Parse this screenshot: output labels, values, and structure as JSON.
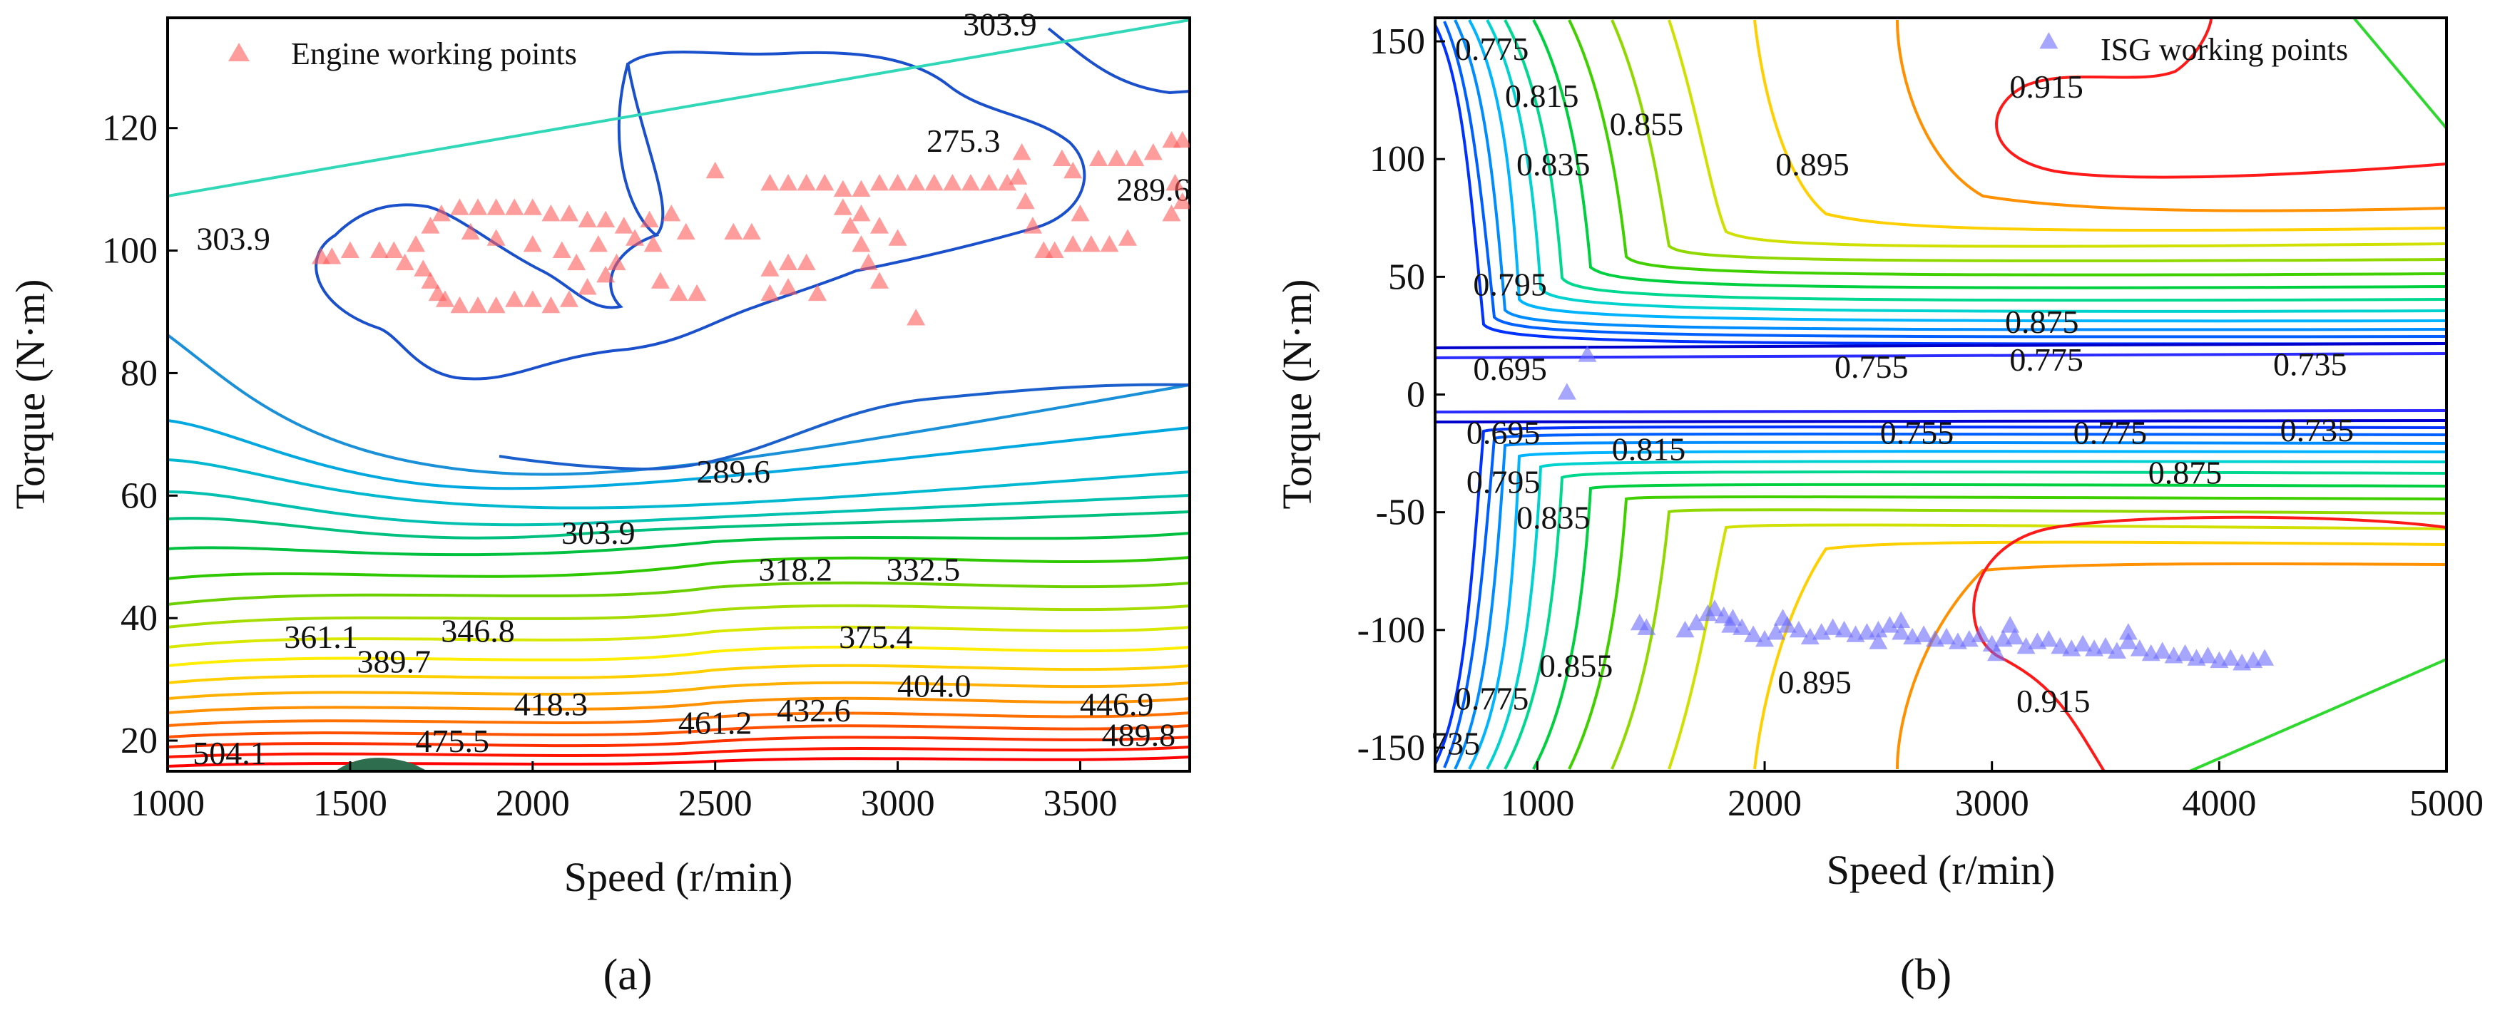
{
  "chart_data": [
    {
      "id": "a",
      "type": "scatter",
      "panel_label": "(a)",
      "xlabel": "Speed (r/min)",
      "ylabel": "Torque (N·m)",
      "xlim": [
        1000,
        3800
      ],
      "ylim": [
        15,
        138
      ],
      "xticks": [
        1000,
        1500,
        2000,
        2500,
        3000,
        3500
      ],
      "yticks": [
        20,
        40,
        60,
        80,
        100,
        120
      ],
      "legend": {
        "label": "Engine working points",
        "position": "top-left",
        "marker": "triangle",
        "color": "#ff5a5a"
      },
      "contour_labels": [
        {
          "text": "303.9",
          "x": 3280,
          "y": 137
        },
        {
          "text": "275.3",
          "x": 3180,
          "y": 118
        },
        {
          "text": "289.6",
          "x": 3700,
          "y": 110
        },
        {
          "text": "303.9",
          "x": 1180,
          "y": 102
        },
        {
          "text": "289.6",
          "x": 2550,
          "y": 64
        },
        {
          "text": "303.9",
          "x": 2180,
          "y": 54
        },
        {
          "text": "318.2",
          "x": 2720,
          "y": 48
        },
        {
          "text": "332.5",
          "x": 3070,
          "y": 48
        },
        {
          "text": "361.1",
          "x": 1420,
          "y": 37
        },
        {
          "text": "346.8",
          "x": 1850,
          "y": 38
        },
        {
          "text": "375.4",
          "x": 2940,
          "y": 37
        },
        {
          "text": "389.7",
          "x": 1620,
          "y": 33
        },
        {
          "text": "404.0",
          "x": 3100,
          "y": 29
        },
        {
          "text": "418.3",
          "x": 2050,
          "y": 26
        },
        {
          "text": "446.9",
          "x": 3600,
          "y": 26
        },
        {
          "text": "432.6",
          "x": 2770,
          "y": 25
        },
        {
          "text": "461.2",
          "x": 2500,
          "y": 23
        },
        {
          "text": "475.5",
          "x": 1780,
          "y": 20
        },
        {
          "text": "489.8",
          "x": 3660,
          "y": 21
        },
        {
          "text": "504.1",
          "x": 1170,
          "y": 18
        }
      ],
      "points": [
        {
          "x": 1750,
          "y": 106
        },
        {
          "x": 1800,
          "y": 107
        },
        {
          "x": 1850,
          "y": 107
        },
        {
          "x": 1900,
          "y": 107
        },
        {
          "x": 1950,
          "y": 107
        },
        {
          "x": 2000,
          "y": 107
        },
        {
          "x": 2050,
          "y": 106
        },
        {
          "x": 2100,
          "y": 106
        },
        {
          "x": 2150,
          "y": 105
        },
        {
          "x": 2200,
          "y": 105
        },
        {
          "x": 2250,
          "y": 104
        },
        {
          "x": 2320,
          "y": 105
        },
        {
          "x": 1720,
          "y": 104
        },
        {
          "x": 1680,
          "y": 101
        },
        {
          "x": 1620,
          "y": 100
        },
        {
          "x": 1580,
          "y": 100
        },
        {
          "x": 1500,
          "y": 100
        },
        {
          "x": 1420,
          "y": 99
        },
        {
          "x": 1450,
          "y": 99
        },
        {
          "x": 1650,
          "y": 98
        },
        {
          "x": 1700,
          "y": 97
        },
        {
          "x": 1720,
          "y": 95
        },
        {
          "x": 1740,
          "y": 93
        },
        {
          "x": 1760,
          "y": 92
        },
        {
          "x": 1800,
          "y": 91
        },
        {
          "x": 1850,
          "y": 91
        },
        {
          "x": 1900,
          "y": 91
        },
        {
          "x": 1950,
          "y": 92
        },
        {
          "x": 2000,
          "y": 92
        },
        {
          "x": 2050,
          "y": 91
        },
        {
          "x": 2100,
          "y": 92
        },
        {
          "x": 2150,
          "y": 94
        },
        {
          "x": 2200,
          "y": 96
        },
        {
          "x": 2230,
          "y": 98
        },
        {
          "x": 1830,
          "y": 103
        },
        {
          "x": 1900,
          "y": 102
        },
        {
          "x": 2000,
          "y": 101
        },
        {
          "x": 2080,
          "y": 100
        },
        {
          "x": 2120,
          "y": 98
        },
        {
          "x": 2180,
          "y": 101
        },
        {
          "x": 2280,
          "y": 102
        },
        {
          "x": 2330,
          "y": 101
        },
        {
          "x": 2380,
          "y": 106
        },
        {
          "x": 2420,
          "y": 103
        },
        {
          "x": 2350,
          "y": 95
        },
        {
          "x": 2400,
          "y": 93
        },
        {
          "x": 2450,
          "y": 93
        },
        {
          "x": 2500,
          "y": 113
        },
        {
          "x": 2550,
          "y": 103
        },
        {
          "x": 2600,
          "y": 103
        },
        {
          "x": 2650,
          "y": 97
        },
        {
          "x": 2700,
          "y": 98
        },
        {
          "x": 2750,
          "y": 98
        },
        {
          "x": 2650,
          "y": 93
        },
        {
          "x": 2700,
          "y": 94
        },
        {
          "x": 2780,
          "y": 93
        },
        {
          "x": 2650,
          "y": 111
        },
        {
          "x": 2700,
          "y": 111
        },
        {
          "x": 2750,
          "y": 111
        },
        {
          "x": 2800,
          "y": 111
        },
        {
          "x": 2850,
          "y": 110
        },
        {
          "x": 2900,
          "y": 110
        },
        {
          "x": 2950,
          "y": 111
        },
        {
          "x": 3000,
          "y": 111
        },
        {
          "x": 3050,
          "y": 111
        },
        {
          "x": 3100,
          "y": 111
        },
        {
          "x": 3150,
          "y": 111
        },
        {
          "x": 3200,
          "y": 111
        },
        {
          "x": 3250,
          "y": 111
        },
        {
          "x": 3300,
          "y": 111
        },
        {
          "x": 2850,
          "y": 107
        },
        {
          "x": 2870,
          "y": 104
        },
        {
          "x": 2900,
          "y": 101
        },
        {
          "x": 2920,
          "y": 98
        },
        {
          "x": 2950,
          "y": 95
        },
        {
          "x": 2900,
          "y": 106
        },
        {
          "x": 2950,
          "y": 104
        },
        {
          "x": 3000,
          "y": 102
        },
        {
          "x": 3050,
          "y": 89
        },
        {
          "x": 3330,
          "y": 112
        },
        {
          "x": 3350,
          "y": 108
        },
        {
          "x": 3370,
          "y": 104
        },
        {
          "x": 3400,
          "y": 100
        },
        {
          "x": 3430,
          "y": 100
        },
        {
          "x": 3480,
          "y": 101
        },
        {
          "x": 3530,
          "y": 101
        },
        {
          "x": 3580,
          "y": 101
        },
        {
          "x": 3630,
          "y": 102
        },
        {
          "x": 3500,
          "y": 106
        },
        {
          "x": 3480,
          "y": 113
        },
        {
          "x": 3450,
          "y": 115
        },
        {
          "x": 3550,
          "y": 115
        },
        {
          "x": 3600,
          "y": 115
        },
        {
          "x": 3650,
          "y": 115
        },
        {
          "x": 3700,
          "y": 116
        },
        {
          "x": 3750,
          "y": 118
        },
        {
          "x": 3780,
          "y": 118
        },
        {
          "x": 3760,
          "y": 111
        },
        {
          "x": 3780,
          "y": 108
        },
        {
          "x": 3750,
          "y": 106
        },
        {
          "x": 3340,
          "y": 116
        }
      ]
    },
    {
      "id": "b",
      "type": "scatter",
      "panel_label": "(b)",
      "xlabel": "Speed (r/min)",
      "ylabel": "Torque (N·m)",
      "xlim": [
        550,
        5000
      ],
      "ylim": [
        -160,
        160
      ],
      "xticks": [
        1000,
        2000,
        3000,
        4000,
        5000
      ],
      "yticks": [
        -150,
        -100,
        -50,
        0,
        50,
        100,
        150
      ],
      "legend": {
        "label": "ISG working points",
        "position": "top-right",
        "marker": "triangle",
        "color": "#6b6bff"
      },
      "contour_labels": [
        {
          "text": "0.775",
          "x": 800,
          "y": 147
        },
        {
          "text": "0.815",
          "x": 1020,
          "y": 127
        },
        {
          "text": "0.855",
          "x": 1480,
          "y": 115
        },
        {
          "text": "0.835",
          "x": 1070,
          "y": 98
        },
        {
          "text": "0.895",
          "x": 2210,
          "y": 98
        },
        {
          "text": "0.915",
          "x": 3240,
          "y": 131
        },
        {
          "text": "0.875",
          "x": 3220,
          "y": 31
        },
        {
          "text": "0.795",
          "x": 880,
          "y": 47
        },
        {
          "text": "0.695",
          "x": 880,
          "y": 11
        },
        {
          "text": "0.755",
          "x": 2470,
          "y": 12
        },
        {
          "text": "0.775",
          "x": 3240,
          "y": 15
        },
        {
          "text": "0.735",
          "x": 4400,
          "y": 13
        },
        {
          "text": "0.695",
          "x": 850,
          "y": -16
        },
        {
          "text": "0.815",
          "x": 1490,
          "y": -23
        },
        {
          "text": "0.755",
          "x": 2670,
          "y": -16
        },
        {
          "text": "0.775",
          "x": 3520,
          "y": -16
        },
        {
          "text": "0.735",
          "x": 4430,
          "y": -15
        },
        {
          "text": "0.875",
          "x": 3850,
          "y": -33
        },
        {
          "text": "0.795",
          "x": 850,
          "y": -37
        },
        {
          "text": "0.835",
          "x": 1070,
          "y": -52
        },
        {
          "text": "0.855",
          "x": 1170,
          "y": -115
        },
        {
          "text": "0.895",
          "x": 2220,
          "y": -122
        },
        {
          "text": "0.915",
          "x": 3270,
          "y": -130
        },
        {
          "text": "0.775",
          "x": 800,
          "y": -129
        },
        {
          "text": "735",
          "x": 640,
          "y": -148
        }
      ],
      "points": [
        {
          "x": 1220,
          "y": 17
        },
        {
          "x": 1130,
          "y": 1
        },
        {
          "x": 1450,
          "y": -97
        },
        {
          "x": 1480,
          "y": -99
        },
        {
          "x": 1650,
          "y": -100
        },
        {
          "x": 1700,
          "y": -97
        },
        {
          "x": 1750,
          "y": -93
        },
        {
          "x": 1780,
          "y": -91
        },
        {
          "x": 1820,
          "y": -94
        },
        {
          "x": 1860,
          "y": -95
        },
        {
          "x": 1900,
          "y": -99
        },
        {
          "x": 1950,
          "y": -102
        },
        {
          "x": 2000,
          "y": -104
        },
        {
          "x": 2050,
          "y": -101
        },
        {
          "x": 2100,
          "y": -98
        },
        {
          "x": 2150,
          "y": -100
        },
        {
          "x": 2200,
          "y": -103
        },
        {
          "x": 2250,
          "y": -101
        },
        {
          "x": 2300,
          "y": -99
        },
        {
          "x": 2350,
          "y": -100
        },
        {
          "x": 2400,
          "y": -102
        },
        {
          "x": 2450,
          "y": -101
        },
        {
          "x": 2500,
          "y": -100
        },
        {
          "x": 2550,
          "y": -98
        },
        {
          "x": 2600,
          "y": -101
        },
        {
          "x": 2650,
          "y": -103
        },
        {
          "x": 2700,
          "y": -102
        },
        {
          "x": 2750,
          "y": -104
        },
        {
          "x": 2800,
          "y": -103
        },
        {
          "x": 2850,
          "y": -105
        },
        {
          "x": 2900,
          "y": -104
        },
        {
          "x": 2950,
          "y": -102
        },
        {
          "x": 3000,
          "y": -106
        },
        {
          "x": 3050,
          "y": -104
        },
        {
          "x": 3100,
          "y": -103
        },
        {
          "x": 3150,
          "y": -107
        },
        {
          "x": 3200,
          "y": -105
        },
        {
          "x": 3250,
          "y": -104
        },
        {
          "x": 3300,
          "y": -107
        },
        {
          "x": 3350,
          "y": -108
        },
        {
          "x": 3400,
          "y": -106
        },
        {
          "x": 3450,
          "y": -108
        },
        {
          "x": 3500,
          "y": -107
        },
        {
          "x": 3550,
          "y": -109
        },
        {
          "x": 3600,
          "y": -105
        },
        {
          "x": 3650,
          "y": -108
        },
        {
          "x": 3700,
          "y": -110
        },
        {
          "x": 3750,
          "y": -109
        },
        {
          "x": 3800,
          "y": -111
        },
        {
          "x": 3850,
          "y": -110
        },
        {
          "x": 3900,
          "y": -112
        },
        {
          "x": 3950,
          "y": -111
        },
        {
          "x": 4000,
          "y": -113
        },
        {
          "x": 4050,
          "y": -112
        },
        {
          "x": 4100,
          "y": -114
        },
        {
          "x": 4150,
          "y": -113
        },
        {
          "x": 4200,
          "y": -112
        },
        {
          "x": 2080,
          "y": -95
        },
        {
          "x": 2600,
          "y": -96
        },
        {
          "x": 3080,
          "y": -98
        },
        {
          "x": 3600,
          "y": -101
        },
        {
          "x": 3020,
          "y": -110
        },
        {
          "x": 2500,
          "y": -105
        },
        {
          "x": 1850,
          "y": -98
        },
        {
          "x": 3250,
          "y": 150
        }
      ]
    }
  ]
}
